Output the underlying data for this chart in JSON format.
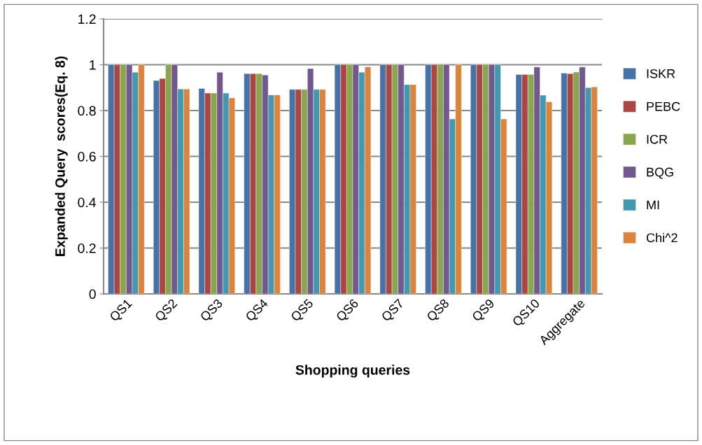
{
  "chart_data": {
    "type": "bar",
    "xlabel": "Shopping queries",
    "ylabel": "Expanded Query  scores(Eq. 8)",
    "categories": [
      "QS1",
      "QS2",
      "QS3",
      "QS4",
      "QS5",
      "QS6",
      "QS7",
      "QS8",
      "QS9",
      "QS10",
      "Aggregate"
    ],
    "series": [
      {
        "name": "ISKR",
        "color": "#4572a7",
        "values": [
          1,
          0.931,
          0.896,
          0.961,
          0.892,
          1,
          1,
          1,
          1,
          0.957,
          0.963
        ]
      },
      {
        "name": "PEBC",
        "color": "#aa4643",
        "values": [
          1,
          0.94,
          0.876,
          0.961,
          0.892,
          1,
          1,
          1,
          1,
          0.957,
          0.961
        ]
      },
      {
        "name": "ICR",
        "color": "#89a54e",
        "values": [
          1,
          1,
          0.876,
          0.961,
          0.892,
          1,
          1,
          1,
          1,
          0.957,
          0.968
        ]
      },
      {
        "name": "BQG",
        "color": "#71588f",
        "values": [
          1,
          1,
          0.967,
          0.955,
          0.983,
          1,
          1,
          1,
          1,
          0.99,
          0.99
        ]
      },
      {
        "name": "MI",
        "color": "#4198af",
        "values": [
          0.967,
          0.894,
          0.876,
          0.868,
          0.892,
          0.967,
          0.913,
          0.763,
          1,
          0.867,
          0.9
        ]
      },
      {
        "name": "Chi^2",
        "color": "#db843d",
        "values": [
          1,
          0.894,
          0.855,
          0.868,
          0.892,
          0.991,
          0.913,
          1,
          0.763,
          0.838,
          0.903
        ]
      }
    ],
    "ylim": [
      0,
      1.2
    ],
    "yticks": [
      0,
      0.2,
      0.4,
      0.6,
      0.8,
      1,
      1.2
    ],
    "grid": "y",
    "legend": "right"
  }
}
